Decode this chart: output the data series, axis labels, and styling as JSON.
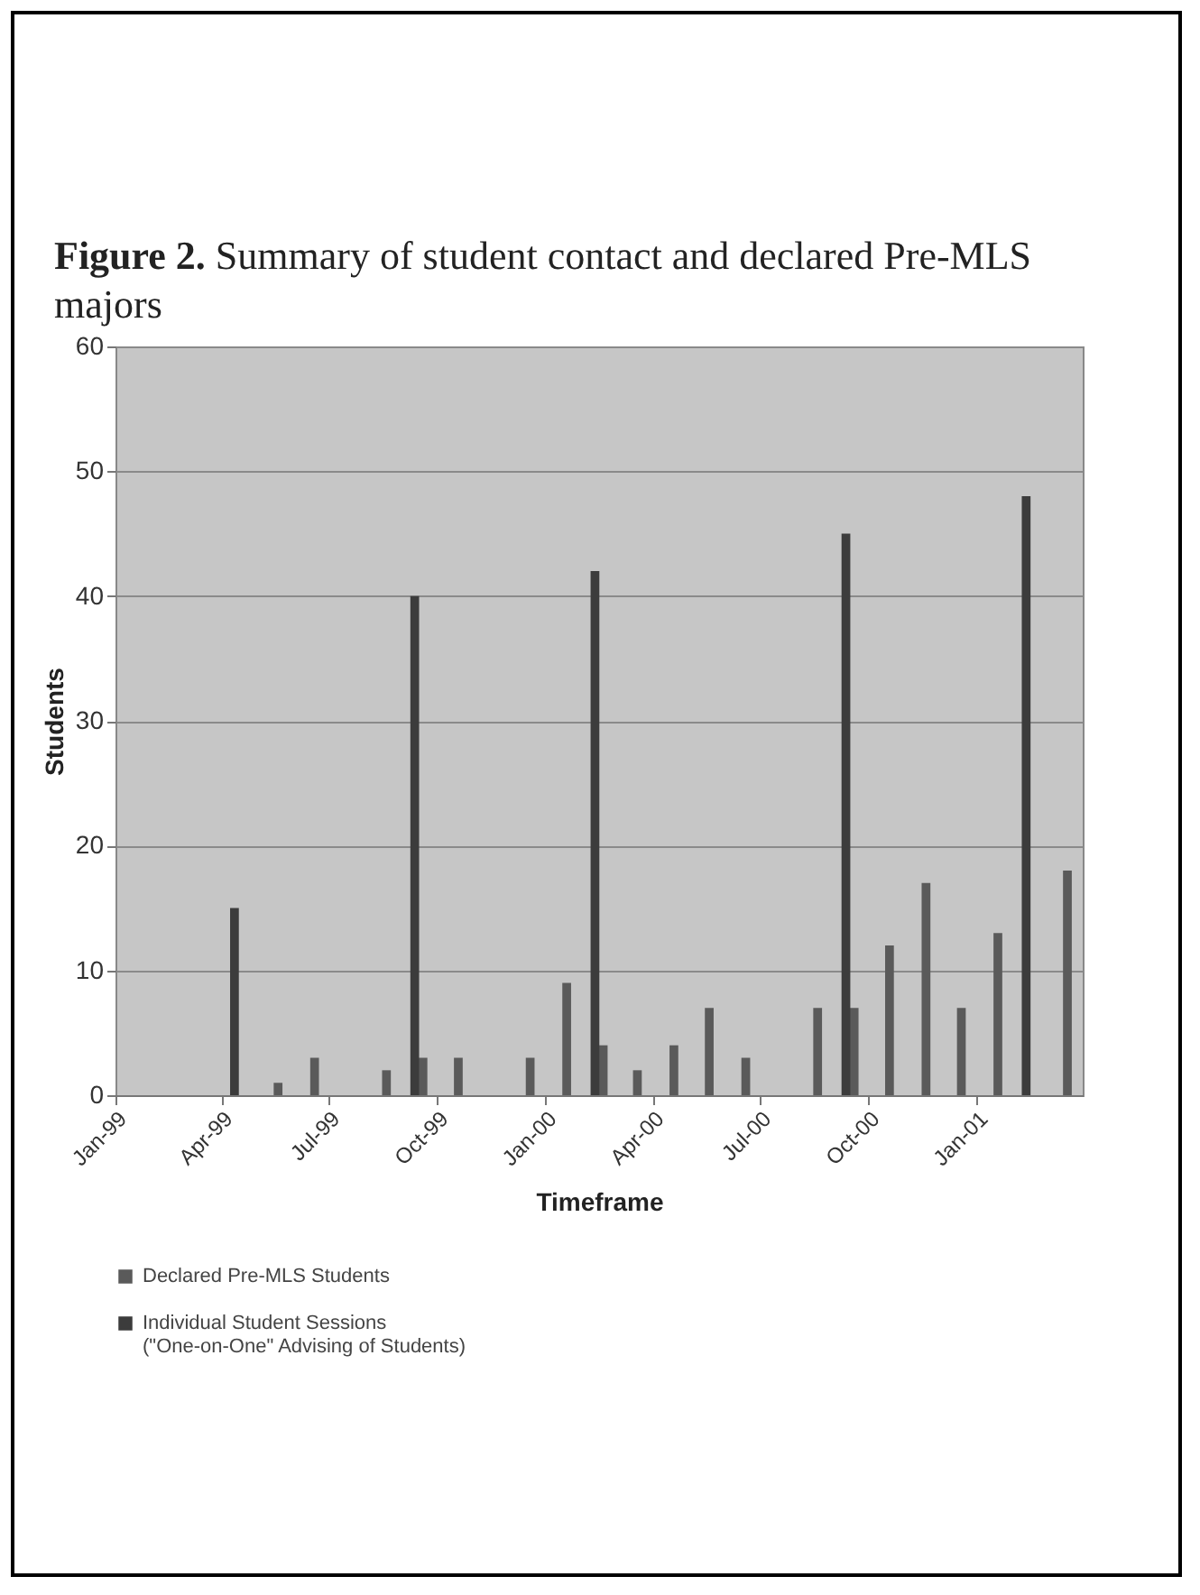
{
  "chart_data": {
    "type": "bar",
    "title": "Figure 2. Summary of student contact and declared Pre-MLS majors",
    "xlabel": "Timeframe",
    "ylabel": "Students",
    "series": [
      {
        "name": "Declared Pre-MLS Students",
        "color": "#5a5a5a",
        "x": [
          "1999-05-19",
          "1999-06-19",
          "1999-08-19",
          "1999-09-19",
          "1999-10-19",
          "1999-12-19",
          "2000-01-19",
          "2000-02-19",
          "2000-03-19",
          "2000-04-19",
          "2000-05-19",
          "2000-06-19",
          "2000-08-19",
          "2000-09-19",
          "2000-10-19",
          "2000-11-19",
          "2000-12-19",
          "2001-01-19",
          "2001-03-19"
        ],
        "values": [
          1,
          3,
          2,
          3,
          3,
          3,
          9,
          4,
          2,
          4,
          7,
          3,
          7,
          7,
          12,
          17,
          7,
          13,
          18
        ]
      },
      {
        "name": "Individual Student Sessions\n(\"One-on-One\" Advising of Students)",
        "color": "#3c3c3c",
        "x": [
          "1999-04-12",
          "1999-09-12",
          "2000-02-12",
          "2000-09-12",
          "2001-02-12"
        ],
        "values": [
          15,
          40,
          42,
          45,
          48
        ]
      }
    ],
    "xlim": [
      "1999-01",
      "2001-04"
    ],
    "xticks": [
      {
        "value": "1999-01",
        "label": "Jan-99"
      },
      {
        "value": "1999-04",
        "label": "Apr-99"
      },
      {
        "value": "1999-07",
        "label": "Jul-99"
      },
      {
        "value": "1999-10",
        "label": "Oct-99"
      },
      {
        "value": "2000-01",
        "label": "Jan-00"
      },
      {
        "value": "2000-04",
        "label": "Apr-00"
      },
      {
        "value": "2000-07",
        "label": "Jul-00"
      },
      {
        "value": "2000-10",
        "label": "Oct-00"
      },
      {
        "value": "2001-01",
        "label": "Jan-01"
      }
    ],
    "ylim": [
      0,
      60
    ],
    "yticks": [
      0,
      10,
      20,
      30,
      40,
      50,
      60
    ],
    "grid": "y",
    "legend": "bottom"
  }
}
